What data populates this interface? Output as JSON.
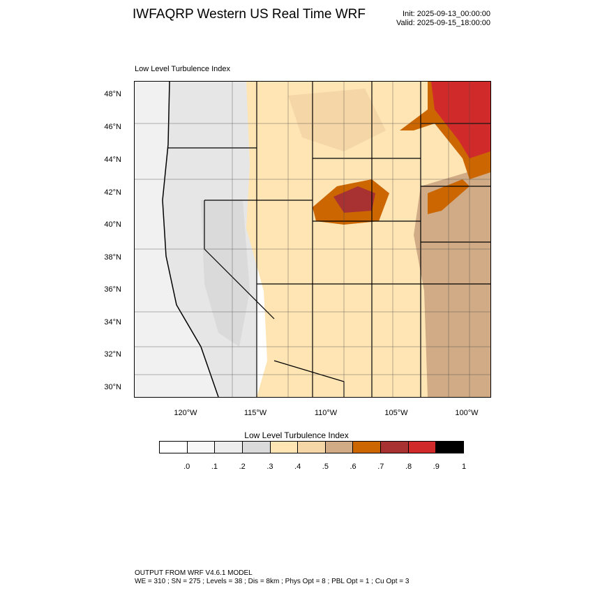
{
  "title": "IWFAQRP Western US Real Time WRF",
  "init": "Init: 2025-09-13_00:00:00",
  "valid": "Valid: 2025-09-15_18:00:00",
  "map_label": "Low Level Turbulence Index",
  "lat_labels": [
    "48°N",
    "46°N",
    "44°N",
    "42°N",
    "40°N",
    "38°N",
    "36°N",
    "34°N",
    "32°N",
    "30°N"
  ],
  "lon_labels": [
    "120°W",
    "115°W",
    "110°W",
    "105°W",
    "100°W"
  ],
  "colorbar": {
    "title": "Low Level Turbulence Index",
    "labels": [
      ".0",
      ".1",
      ".2",
      ".3",
      ".4",
      ".5",
      ".6",
      ".7",
      ".8",
      ".9",
      "1"
    ],
    "colors": [
      "#ffffff",
      "#f7f7f7",
      "#ededed",
      "#dadada",
      "#ffe5b4",
      "#f5d6a6",
      "#d0ab85",
      "#cc6600",
      "#a83232",
      "#d12a2a",
      "#000000"
    ]
  },
  "footer": {
    "line1": "OUTPUT FROM WRF V4.6.1 MODEL",
    "line2": "WE = 310 ; SN = 275 ; Levels = 38 ; Dis = 8km ; Phys Opt = 8 ; PBL Opt = 1 ; Cu Opt = 3"
  }
}
